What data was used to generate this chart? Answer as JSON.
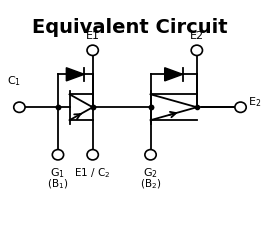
{
  "title": "Equivalent Circuit",
  "title_fontsize": 14,
  "title_fontweight": "bold",
  "background_color": "#ffffff",
  "line_color": "#000000",
  "text_color": "#000000",
  "fig_width": 2.65,
  "fig_height": 2.38,
  "dpi": 100
}
